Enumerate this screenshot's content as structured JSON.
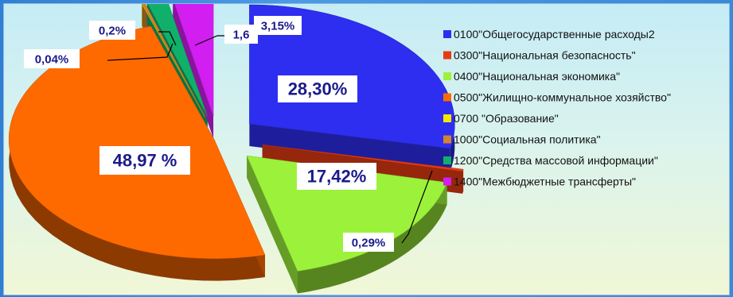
{
  "chart_data": {
    "type": "pie",
    "series": [
      {
        "code_label": "0100\"Общегосударственные расходы2",
        "value": 28.3,
        "color": "#2e2ef0",
        "label": "28,30%"
      },
      {
        "code_label": "0300\"Национальная безопасность\"",
        "value": 0.29,
        "color": "#e63a12",
        "label": "0,29%"
      },
      {
        "code_label": "0400\"Национальная экономика\"",
        "value": 17.42,
        "color": "#9cf23a",
        "label": "17,42%"
      },
      {
        "code_label": "0500\"Жилищно-коммунальное хозяйство\"",
        "value": 48.97,
        "color": "#ff6a00",
        "label": "48,97 %"
      },
      {
        "code_label": "0700 \"Образование\"",
        "value": 0.04,
        "color": "#f5e800",
        "label": "0,04%"
      },
      {
        "code_label": "1000\"Социальная политика\"",
        "value": 0.2,
        "color": "#d4832e",
        "label": "0,2%"
      },
      {
        "code_label": "1200\"Средства массовой информации\"",
        "value": 1.6,
        "color": "#11b06a",
        "label": "1,6"
      },
      {
        "code_label": "1400\"Межбюджетные трансферты\"",
        "value": 3.15,
        "color": "#d21ef0",
        "label": "3,15%"
      }
    ],
    "legend_position": "right"
  }
}
